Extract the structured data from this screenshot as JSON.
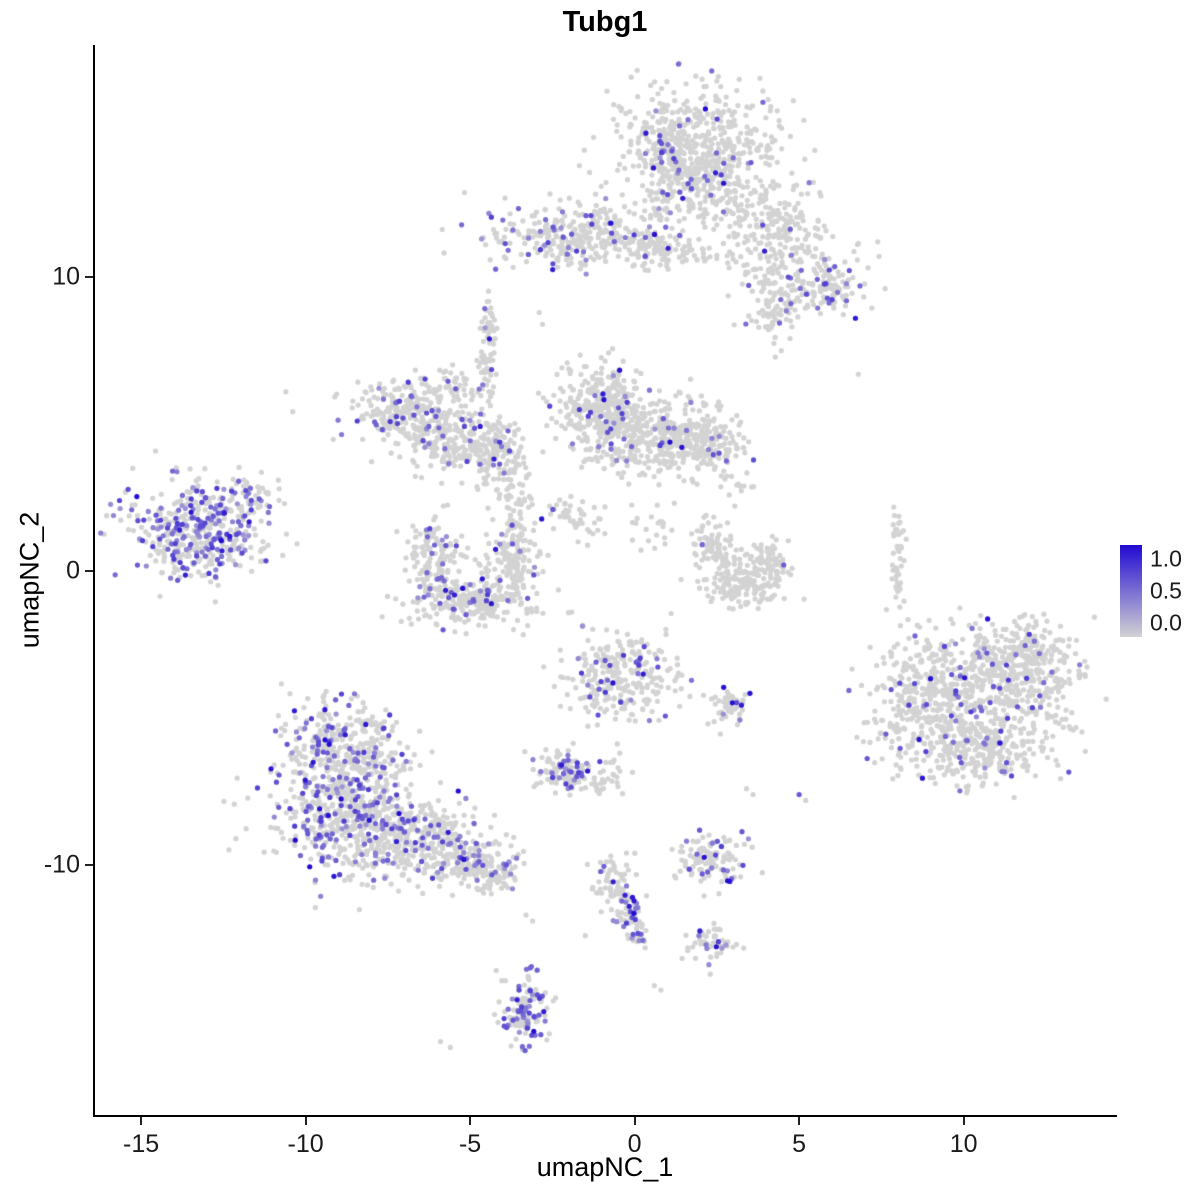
{
  "legend": {
    "ticks": [
      "1.0",
      "0.5",
      "0.0"
    ],
    "color_high": "#210ad2",
    "color_mid": "#7a6ed2",
    "color_low": "#d3d3d3"
  },
  "chart_data": {
    "type": "scatter",
    "title": "Tubg1",
    "xlabel": "umapNC_1",
    "ylabel": "umapNC_2",
    "xlim": [
      -16.4,
      14.6
    ],
    "ylim": [
      -18.5,
      17.9
    ],
    "x_ticks": [
      -15,
      -10,
      -5,
      0,
      5,
      10
    ],
    "y_ticks": [
      -10,
      0,
      10
    ],
    "legend_ticks": [
      1.0,
      0.5,
      0.0
    ],
    "grid": false,
    "legend_position": "right",
    "color_scale": {
      "low_value": 0.0,
      "high_value": 1.0,
      "low_color": "#d3d3d3",
      "high_color": "#210ad2"
    },
    "point_radius_px": 2.6,
    "seed": 7,
    "clusters": [
      {
        "name": "top-main",
        "cx": 2.0,
        "cy": 14.1,
        "sx": 1.15,
        "sy": 1.25,
        "n": 650,
        "frac": 0.05
      },
      {
        "name": "top-main-left-edge",
        "cx": 0.9,
        "cy": 14.6,
        "sx": 0.35,
        "sy": 0.8,
        "n": 90,
        "frac": 0.18
      },
      {
        "name": "top-right-arm",
        "cx": 4.1,
        "cy": 12.1,
        "sx": 0.75,
        "sy": 0.6,
        "n": 140,
        "frac": 0.02
      },
      {
        "name": "top-right-lower",
        "cx": 5.0,
        "cy": 10.2,
        "sx": 1.0,
        "sy": 0.7,
        "n": 160,
        "frac": 0.05
      },
      {
        "name": "top-right-purple-patch",
        "cx": 5.9,
        "cy": 9.7,
        "sx": 0.4,
        "sy": 0.45,
        "n": 70,
        "frac": 0.3
      },
      {
        "name": "top-right-hang",
        "cx": 4.3,
        "cy": 8.9,
        "sx": 0.4,
        "sy": 0.55,
        "n": 70,
        "frac": 0.03
      },
      {
        "name": "upper-band",
        "cx": -1.9,
        "cy": 11.4,
        "sx": 1.3,
        "sy": 0.55,
        "n": 320,
        "frac": 0.13
      },
      {
        "name": "upper-band-right",
        "cx": 0.7,
        "cy": 11.1,
        "sx": 0.55,
        "sy": 0.35,
        "n": 80,
        "frac": 0.05
      },
      {
        "name": "upper-band-trail",
        "cx": 1.9,
        "cy": 10.8,
        "sx": 0.5,
        "sy": 0.25,
        "n": 30,
        "frac": 0.0
      },
      {
        "name": "midleft-arc-a",
        "cx": -6.9,
        "cy": 5.5,
        "sx": 0.85,
        "sy": 0.5,
        "n": 230,
        "frac": 0.1
      },
      {
        "name": "midleft-arc-b",
        "cx": -5.6,
        "cy": 4.5,
        "sx": 0.75,
        "sy": 0.5,
        "n": 190,
        "frac": 0.08
      },
      {
        "name": "midleft-arc-c",
        "cx": -4.3,
        "cy": 4.0,
        "sx": 0.5,
        "sy": 0.6,
        "n": 140,
        "frac": 0.1
      },
      {
        "name": "midleft-strand-up",
        "cx": -4.5,
        "cy": 7.0,
        "sx": 0.15,
        "sy": 0.9,
        "n": 55,
        "frac": 0.06
      },
      {
        "name": "midleft-strand-top",
        "cx": -4.4,
        "cy": 8.6,
        "sx": 0.12,
        "sy": 0.5,
        "n": 25,
        "frac": 0.05
      },
      {
        "name": "midleft-bits",
        "cx": -5.5,
        "cy": 6.3,
        "sx": 0.3,
        "sy": 0.3,
        "n": 35,
        "frac": 0.03
      },
      {
        "name": "center-top-a",
        "cx": -1.1,
        "cy": 5.6,
        "sx": 0.65,
        "sy": 0.8,
        "n": 280,
        "frac": 0.06
      },
      {
        "name": "center-top-b",
        "cx": 0.5,
        "cy": 4.6,
        "sx": 0.95,
        "sy": 0.7,
        "n": 330,
        "frac": 0.05
      },
      {
        "name": "center-top-c",
        "cx": 2.1,
        "cy": 4.4,
        "sx": 0.65,
        "sy": 0.5,
        "n": 190,
        "frac": 0.04
      },
      {
        "name": "center-strand",
        "cx": -3.6,
        "cy": 2.4,
        "sx": 0.22,
        "sy": 1.0,
        "n": 55,
        "frac": 0.03
      },
      {
        "name": "center-diag-strand",
        "cx": -1.8,
        "cy": 1.8,
        "sx": 0.5,
        "sy": 0.4,
        "n": 45,
        "frac": 0.02
      },
      {
        "name": "center-sparse",
        "cx": 0.6,
        "cy": 1.5,
        "sx": 0.4,
        "sy": 0.4,
        "n": 20,
        "frac": 0.0
      },
      {
        "name": "crescent-gap-sparse",
        "cx": 3.2,
        "cy": 2.9,
        "sx": 0.3,
        "sy": 0.3,
        "n": 15,
        "frac": 0.0
      },
      {
        "name": "bottom-u-left",
        "cx": -6.1,
        "cy": 0.5,
        "sx": 0.4,
        "sy": 0.85,
        "n": 140,
        "frac": 0.1
      },
      {
        "name": "bottom-u-base",
        "cx": -5.0,
        "cy": -1.0,
        "sx": 0.85,
        "sy": 0.45,
        "n": 240,
        "frac": 0.13
      },
      {
        "name": "bottom-u-right",
        "cx": -3.7,
        "cy": 0.3,
        "sx": 0.4,
        "sy": 0.7,
        "n": 140,
        "frac": 0.06
      },
      {
        "name": "far-left",
        "cx": -13.3,
        "cy": 1.4,
        "sx": 1.05,
        "sy": 0.85,
        "n": 430,
        "frac": 0.35
      },
      {
        "name": "far-left-arm",
        "cx": -11.6,
        "cy": 2.6,
        "sx": 0.4,
        "sy": 0.3,
        "n": 45,
        "frac": 0.3
      },
      {
        "name": "right-crescent-a",
        "cx": 2.4,
        "cy": 0.9,
        "sx": 0.3,
        "sy": 0.5,
        "n": 80,
        "frac": 0.04
      },
      {
        "name": "right-crescent-b",
        "cx": 3.2,
        "cy": -0.4,
        "sx": 0.55,
        "sy": 0.4,
        "n": 140,
        "frac": 0.02
      },
      {
        "name": "right-crescent-c",
        "cx": 4.2,
        "cy": 0.2,
        "sx": 0.3,
        "sy": 0.5,
        "n": 80,
        "frac": 0.02
      },
      {
        "name": "thin-vertical-line",
        "cx": 8.0,
        "cy": 0.2,
        "sx": 0.1,
        "sy": 0.8,
        "n": 45,
        "frac": 0.0
      },
      {
        "name": "right-big-a",
        "cx": 8.9,
        "cy": -4.4,
        "sx": 0.9,
        "sy": 1.1,
        "n": 380,
        "frac": 0.07
      },
      {
        "name": "right-big-b",
        "cx": 11.3,
        "cy": -3.6,
        "sx": 1.1,
        "sy": 0.9,
        "n": 430,
        "frac": 0.08
      },
      {
        "name": "right-big-c",
        "cx": 10.7,
        "cy": -6.0,
        "sx": 1.0,
        "sy": 0.6,
        "n": 280,
        "frac": 0.07
      },
      {
        "name": "right-big-top",
        "cx": 12.2,
        "cy": -2.7,
        "sx": 0.6,
        "sy": 0.45,
        "n": 90,
        "frac": 0.05
      },
      {
        "name": "center-mid",
        "cx": -0.5,
        "cy": -3.6,
        "sx": 0.85,
        "sy": 0.8,
        "n": 270,
        "frac": 0.1
      },
      {
        "name": "center-mid-tiny",
        "cx": 2.9,
        "cy": -4.5,
        "sx": 0.3,
        "sy": 0.3,
        "n": 50,
        "frac": 0.12
      },
      {
        "name": "small-dense",
        "cx": -2.2,
        "cy": -6.8,
        "sx": 0.45,
        "sy": 0.4,
        "n": 110,
        "frac": 0.3
      },
      {
        "name": "small-dense-tail",
        "cx": -1.0,
        "cy": -7.0,
        "sx": 0.3,
        "sy": 0.3,
        "n": 35,
        "frac": 0.03
      },
      {
        "name": "bottomleft-a",
        "cx": -8.9,
        "cy": -6.0,
        "sx": 0.9,
        "sy": 0.8,
        "n": 330,
        "frac": 0.2
      },
      {
        "name": "bottomleft-b",
        "cx": -8.8,
        "cy": -8.2,
        "sx": 1.1,
        "sy": 1.0,
        "n": 480,
        "frac": 0.25
      },
      {
        "name": "bottomleft-c",
        "cx": -6.7,
        "cy": -9.0,
        "sx": 1.0,
        "sy": 0.7,
        "n": 330,
        "frac": 0.15
      },
      {
        "name": "bottomleft-arm",
        "cx": -5.2,
        "cy": -9.9,
        "sx": 0.7,
        "sy": 0.4,
        "n": 140,
        "frac": 0.2
      },
      {
        "name": "bottomleft-tail",
        "cx": -4.2,
        "cy": -10.5,
        "sx": 0.3,
        "sy": 0.3,
        "n": 55,
        "frac": 0.15
      },
      {
        "name": "small-right-mid",
        "cx": 2.3,
        "cy": -9.7,
        "sx": 0.5,
        "sy": 0.4,
        "n": 110,
        "frac": 0.25
      },
      {
        "name": "diag-strand-a",
        "cx": -0.6,
        "cy": -10.7,
        "sx": 0.35,
        "sy": 0.45,
        "n": 65,
        "frac": 0.05
      },
      {
        "name": "diag-strand-b",
        "cx": -0.2,
        "cy": -11.8,
        "sx": 0.25,
        "sy": 0.35,
        "n": 45,
        "frac": 0.18
      },
      {
        "name": "diag-strand-tip",
        "cx": 0.1,
        "cy": -12.5,
        "sx": 0.15,
        "sy": 0.2,
        "n": 18,
        "frac": 0.1
      },
      {
        "name": "small-bottom-right",
        "cx": 2.3,
        "cy": -12.6,
        "sx": 0.35,
        "sy": 0.3,
        "n": 55,
        "frac": 0.15
      },
      {
        "name": "bottom-dense",
        "cx": -3.4,
        "cy": -14.9,
        "sx": 0.35,
        "sy": 0.6,
        "n": 130,
        "frac": 0.45
      }
    ],
    "stray_points": [
      [
        6.8,
        6.7,
        0
      ],
      [
        -10.6,
        6.1,
        0
      ],
      [
        -2.9,
        8.8,
        0
      ],
      [
        -2.8,
        8.4,
        0
      ],
      [
        3.4,
        -7.4,
        0
      ],
      [
        3.6,
        -7.6,
        0
      ],
      [
        5.0,
        -7.6,
        0.6
      ],
      [
        5.2,
        -7.8,
        0
      ],
      [
        -3.3,
        -11.7,
        0
      ],
      [
        -3.1,
        -11.9,
        0
      ],
      [
        -1.5,
        -12.4,
        0
      ],
      [
        -5.9,
        -16.0,
        0
      ],
      [
        -5.6,
        -16.2,
        0
      ],
      [
        0.6,
        -14.1,
        0
      ],
      [
        0.8,
        -14.25,
        0
      ]
    ]
  }
}
